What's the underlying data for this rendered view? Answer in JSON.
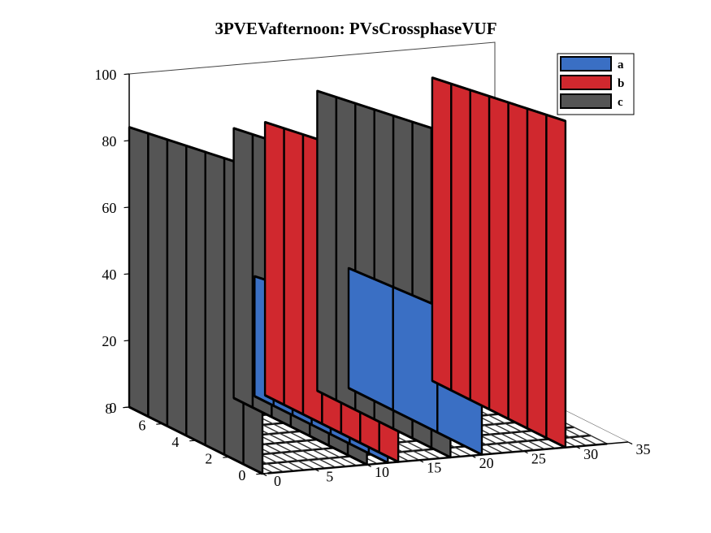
{
  "chart_data": {
    "type": "area",
    "subtype": "3d-waterfall",
    "title": "3PVEVafternoon: PVsCrossphaseVUF",
    "xlabel": "",
    "ylabel": "",
    "zlabel": "",
    "xlim": [
      0,
      35
    ],
    "ylim": [
      0,
      8
    ],
    "zlim": [
      0,
      100
    ],
    "x_ticks": [
      "0",
      "5",
      "10",
      "15",
      "20",
      "25",
      "30",
      "35"
    ],
    "y_ticks": [
      "0",
      "2",
      "4",
      "6",
      "8"
    ],
    "z_ticks": [
      "0",
      "20",
      "40",
      "60",
      "80",
      "100"
    ],
    "legend_position": "top-right",
    "series": [
      {
        "name": "a",
        "color": "#3a6fc4",
        "points": [
          {
            "x": 12,
            "values": [
              48,
              48,
              47,
              45,
              41,
              38,
              37,
              36
            ]
          },
          {
            "x": 21,
            "values": [
              39,
              38,
              37,
              36
            ]
          }
        ]
      },
      {
        "name": "b",
        "color": "#d0282e",
        "points": [
          {
            "x": 13,
            "values": [
              88,
              88,
              87,
              86,
              85,
              84,
              83,
              82
            ]
          },
          {
            "x": 29,
            "values": [
              98,
              97,
              96,
              95,
              94,
              93,
              92,
              91
            ]
          }
        ]
      },
      {
        "name": "c",
        "color": "#555555",
        "points": [
          {
            "x": 0,
            "values": [
              50,
              90,
              89,
              88,
              87,
              86,
              85,
              84
            ]
          },
          {
            "x": 10,
            "values": [
              90,
              91,
              86,
              85,
              84,
              83,
              82,
              81
            ]
          },
          {
            "x": 18,
            "values": [
              97,
              96,
              95,
              94,
              93,
              92,
              91,
              90
            ]
          }
        ]
      }
    ]
  }
}
